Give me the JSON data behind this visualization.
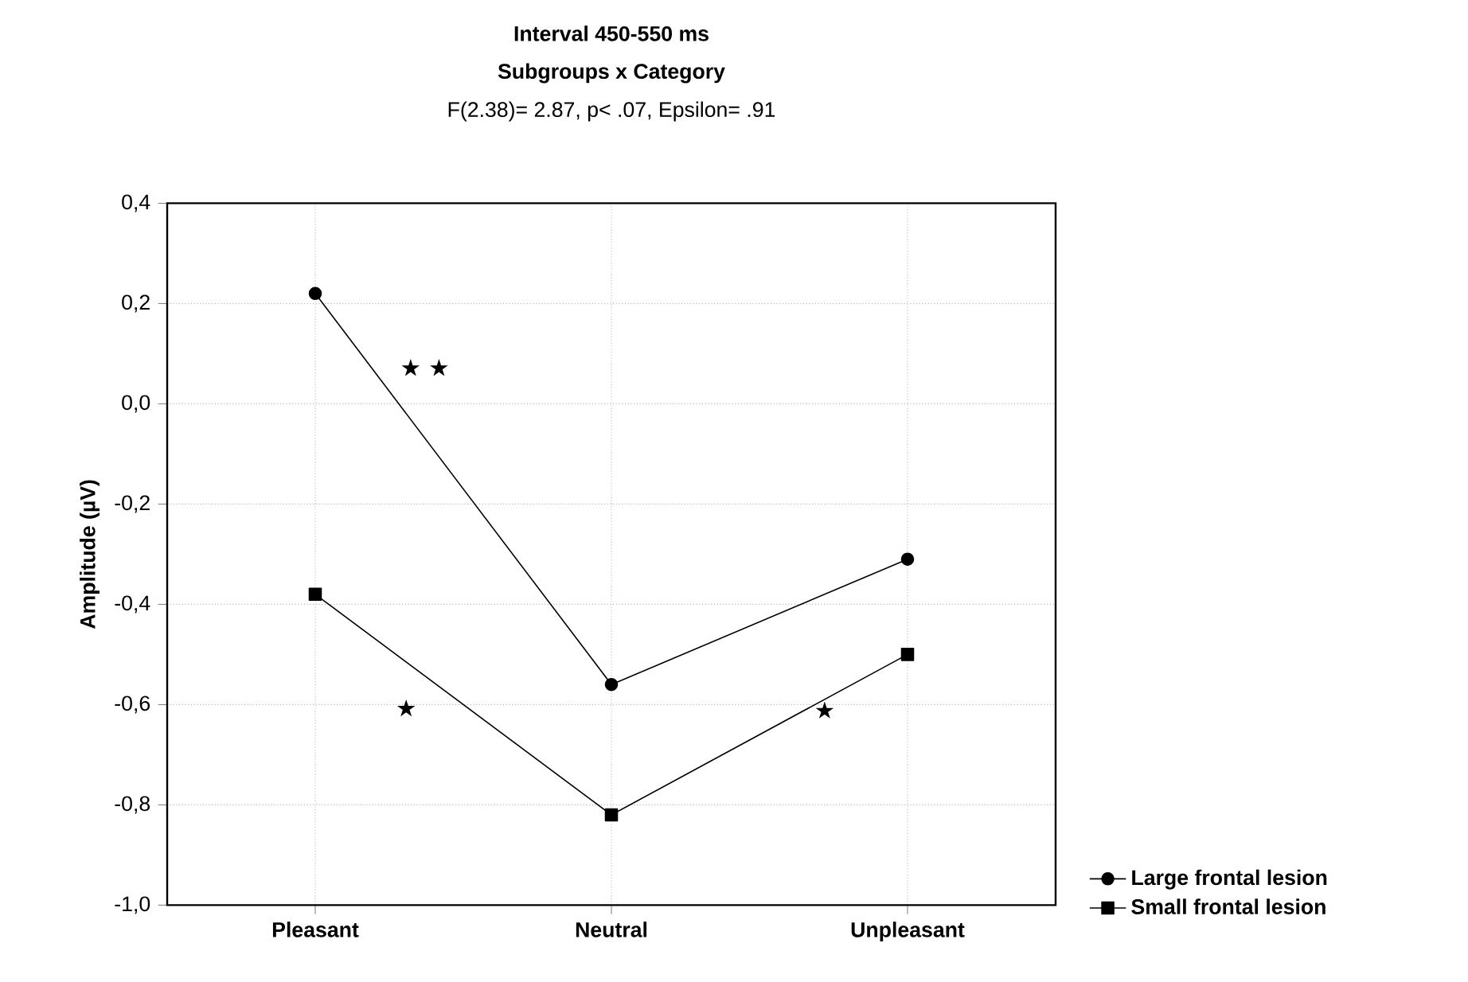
{
  "chart_data": {
    "type": "line",
    "title": "Interval 450-550 ms",
    "subtitle": "Subgroups x Category",
    "ylabel": "Amplitude (µV)",
    "annotations": [
      "F(2.38)= 2.87, p< .07, Epsilon= .91",
      "★ ★",
      "★",
      "★"
    ],
    "categories": [
      "Pleasant",
      "Neutral",
      "Unpleasant"
    ],
    "series": [
      {
        "name": "Large frontal lesion",
        "color": "#000000",
        "marker": "circle",
        "values": [
          0.22,
          -0.56,
          -0.31
        ]
      },
      {
        "name": "Small frontal lesion",
        "color": "#000000",
        "marker": "square",
        "values": [
          -0.38,
          -0.82,
          -0.5
        ]
      }
    ],
    "ylim": [
      -1.0,
      0.4
    ],
    "yticks": [
      {
        "value": -1.0,
        "label": "-1,0"
      },
      {
        "value": -0.8,
        "label": "-0,8"
      },
      {
        "value": -0.6,
        "label": "-0,6"
      },
      {
        "value": -0.4,
        "label": "-0,4"
      },
      {
        "value": -0.2,
        "label": "-0,2"
      },
      {
        "value": 0.0,
        "label": "0,0"
      },
      {
        "value": 0.2,
        "label": "0,2"
      },
      {
        "value": 0.4,
        "label": "0,4"
      }
    ],
    "grid": true,
    "legend": "bottom right"
  }
}
